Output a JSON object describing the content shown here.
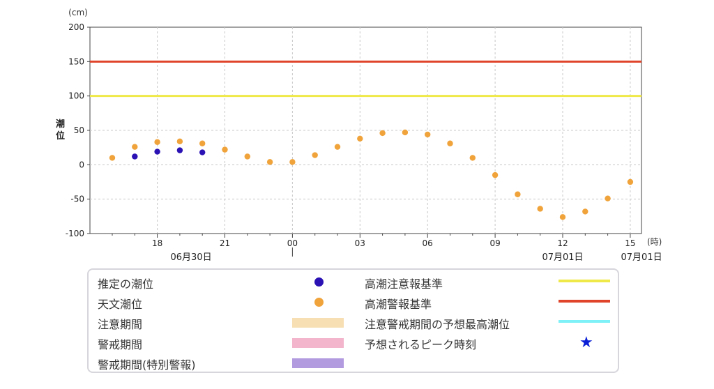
{
  "chart_data": {
    "type": "scatter",
    "unit_label": "(cm)",
    "ylabel": "潮位",
    "xunit_label": "(時)",
    "ylim": [
      -100,
      200
    ],
    "yticks": [
      -100,
      -50,
      0,
      50,
      100,
      150,
      200
    ],
    "x_hours_range": [
      -8,
      16
    ],
    "x_ticks": [
      {
        "hour": -6,
        "label": "18"
      },
      {
        "hour": -3,
        "label": "21"
      },
      {
        "hour": 0,
        "label": "00"
      },
      {
        "hour": 3,
        "label": "03"
      },
      {
        "hour": 6,
        "label": "06"
      },
      {
        "hour": 9,
        "label": "09"
      },
      {
        "hour": 12,
        "label": "12"
      },
      {
        "hour": 15,
        "label": "15"
      }
    ],
    "date_labels": [
      {
        "hour": -4.5,
        "label": "06月30日"
      },
      {
        "hour": 12,
        "label": "07月01日"
      },
      {
        "hour": 15.5,
        "label": "07月01日"
      }
    ],
    "grid": true,
    "reference_lines": [
      {
        "name": "高潮警報基準",
        "value": 150,
        "color": "#e0452b"
      },
      {
        "name": "高潮注意報基準",
        "value": 100,
        "color": "#efe94a"
      }
    ],
    "series": [
      {
        "name": "天文潮位",
        "color": "#f0a33a",
        "x": [
          -8,
          -7,
          -6,
          -5,
          -4,
          -3,
          -2,
          -1,
          0,
          1,
          2,
          3,
          4,
          5,
          6,
          7,
          8,
          9,
          10,
          11,
          12,
          13,
          14,
          15
        ],
        "y": [
          10,
          26,
          33,
          34,
          31,
          22,
          12,
          4,
          4,
          14,
          26,
          38,
          46,
          47,
          44,
          31,
          10,
          -15,
          -43,
          -64,
          -76,
          -68,
          -49,
          -25
        ]
      },
      {
        "name": "推定の潮位",
        "color": "#2a12b4",
        "x": [
          -7,
          -6,
          -5,
          -4
        ],
        "y": [
          12,
          19,
          21,
          18
        ]
      }
    ]
  },
  "legend": {
    "items": [
      {
        "label": "推定の潮位",
        "symbol": "dot",
        "color": "#2a12b4"
      },
      {
        "label": "天文潮位",
        "symbol": "dot",
        "color": "#f0a33a"
      },
      {
        "label": "注意期間",
        "symbol": "bar",
        "color": "#f7dfb3"
      },
      {
        "label": "警戒期間",
        "symbol": "bar",
        "color": "#f2b5cc"
      },
      {
        "label": "警戒期間(特別警報)",
        "symbol": "bar",
        "color": "#b39be0"
      },
      {
        "label": "高潮注意報基準",
        "symbol": "line",
        "color": "#efe94a"
      },
      {
        "label": "高潮警報基準",
        "symbol": "line",
        "color": "#e0452b"
      },
      {
        "label": "注意警戒期間の予想最高潮位",
        "symbol": "line",
        "color": "#7ef0f7"
      },
      {
        "label": "予想されるピーク時刻",
        "symbol": "star",
        "color": "#0a1fd6",
        "glyph": "★"
      }
    ]
  }
}
